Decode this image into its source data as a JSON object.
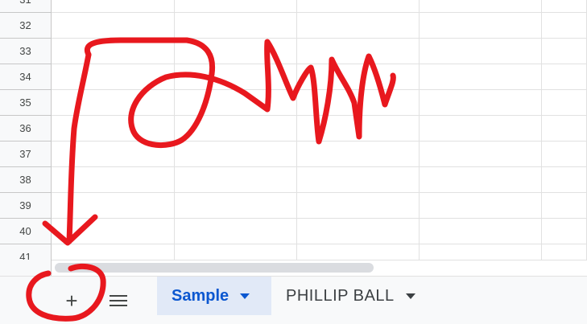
{
  "rows": [
    "31",
    "32",
    "33",
    "34",
    "35",
    "36",
    "37",
    "38",
    "39",
    "40",
    "41"
  ],
  "sheet_tabs": {
    "add_icon": "plus-icon",
    "list_icon": "hamburger-icon",
    "tabs": [
      {
        "label": "Sample",
        "active": true
      },
      {
        "label": "PHILLIP BALL",
        "active": false
      }
    ]
  },
  "annotation": {
    "color": "#e8181e",
    "description_visible": false
  }
}
